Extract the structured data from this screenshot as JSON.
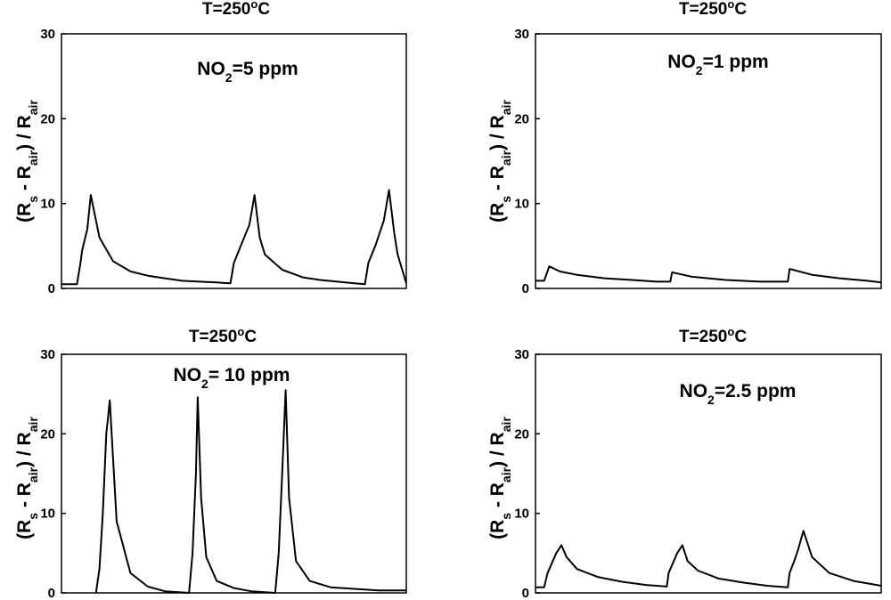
{
  "chart_data": [
    {
      "type": "line",
      "title": "T=250",
      "title_sup": "o",
      "title_unit": "C",
      "ylabel": {
        "open": "(R",
        "s": "s",
        "minus": " - R",
        "air1": "air",
        "close": ") / R",
        "air2": "air"
      },
      "ylim": [
        0,
        30
      ],
      "yticks": [
        0,
        10,
        20,
        30
      ],
      "annotation": {
        "pre": "NO",
        "sub": "2",
        "post": "=5 ppm"
      },
      "series": [
        {
          "name": "NO2 5 ppm response",
          "x": [
            0.0,
            0.02,
            0.045,
            0.055,
            0.06,
            0.075,
            0.085,
            0.11,
            0.15,
            0.2,
            0.25,
            0.3,
            0.35,
            0.4,
            0.45,
            0.49,
            0.49,
            0.5,
            0.52,
            0.545,
            0.56,
            0.575,
            0.59,
            0.64,
            0.7,
            0.75,
            0.8,
            0.85,
            0.88,
            0.88,
            0.89,
            0.91,
            0.935,
            0.95,
            0.965,
            0.975,
            1.0
          ],
          "y": [
            0.5,
            0.5,
            0.5,
            3.0,
            4.5,
            7.0,
            11.0,
            6.0,
            3.2,
            2.0,
            1.5,
            1.2,
            0.9,
            0.8,
            0.7,
            0.6,
            0.6,
            3.0,
            5.0,
            7.5,
            11.0,
            6.0,
            4.0,
            2.2,
            1.3,
            1.0,
            0.8,
            0.6,
            0.5,
            0.5,
            3.0,
            5.0,
            8.0,
            11.6,
            6.5,
            4.0,
            0.6
          ]
        }
      ]
    },
    {
      "type": "line",
      "title": "T=250",
      "title_sup": "o",
      "title_unit": "C",
      "ylabel": {
        "open": "(R",
        "s": "s",
        "minus": " - R",
        "air1": "air",
        "close": ") / R",
        "air2": "air"
      },
      "ylim": [
        0,
        30
      ],
      "yticks": [
        0,
        10,
        20,
        30
      ],
      "annotation": {
        "pre": "NO",
        "sub": "2",
        "post": "=1 ppm"
      },
      "series": [
        {
          "name": "NO2 1 ppm response",
          "x": [
            0.0,
            0.025,
            0.04,
            0.07,
            0.12,
            0.2,
            0.28,
            0.35,
            0.39,
            0.395,
            0.45,
            0.55,
            0.65,
            0.73,
            0.735,
            0.8,
            0.88,
            0.96,
            1.0
          ],
          "y": [
            0.9,
            0.9,
            2.6,
            2.0,
            1.6,
            1.2,
            1.0,
            0.8,
            0.8,
            1.9,
            1.4,
            1.0,
            0.8,
            0.8,
            2.3,
            1.6,
            1.2,
            0.9,
            0.7
          ]
        }
      ]
    },
    {
      "type": "line",
      "title": "T=250",
      "title_sup": "o",
      "title_unit": "C",
      "ylabel": {
        "open": "(R",
        "s": "s",
        "minus": " - R",
        "air1": "air",
        "close": ") / R",
        "air2": "air"
      },
      "ylim": [
        0,
        30
      ],
      "yticks": [
        0,
        10,
        20,
        30
      ],
      "annotation": {
        "pre": "NO",
        "sub": "2",
        "post": "= 10 ppm"
      },
      "series": [
        {
          "name": "NO2 10 ppm response",
          "x": [
            0.1,
            0.11,
            0.12,
            0.13,
            0.14,
            0.16,
            0.2,
            0.25,
            0.3,
            0.37,
            0.38,
            0.39,
            0.395,
            0.405,
            0.42,
            0.45,
            0.5,
            0.55,
            0.62,
            0.63,
            0.64,
            0.65,
            0.66,
            0.68,
            0.72,
            0.78,
            0.85,
            0.92,
            1.0
          ],
          "y": [
            0.0,
            3.0,
            10.0,
            20.0,
            24.2,
            9.0,
            2.5,
            0.8,
            0.2,
            0.0,
            5.0,
            15.0,
            24.6,
            12.0,
            4.5,
            1.5,
            0.6,
            0.2,
            0.0,
            5.0,
            15.0,
            25.5,
            12.0,
            4.0,
            1.5,
            0.7,
            0.5,
            0.3,
            0.3
          ]
        }
      ]
    },
    {
      "type": "line",
      "title": "T=250",
      "title_sup": "o",
      "title_unit": "C",
      "ylabel": {
        "open": "(R",
        "s": "s",
        "minus": " - R",
        "air1": "air",
        "close": ") / R",
        "air2": "air"
      },
      "ylim": [
        0,
        30
      ],
      "yticks": [
        0,
        10,
        20,
        30
      ],
      "annotation": {
        "pre": "NO",
        "sub": "2",
        "post": "=2.5 ppm"
      },
      "series": [
        {
          "name": "NO2 2.5 ppm response",
          "x": [
            0.0,
            0.025,
            0.035,
            0.05,
            0.06,
            0.075,
            0.09,
            0.12,
            0.18,
            0.25,
            0.32,
            0.38,
            0.385,
            0.4,
            0.41,
            0.425,
            0.44,
            0.47,
            0.53,
            0.6,
            0.67,
            0.73,
            0.735,
            0.75,
            0.76,
            0.775,
            0.8,
            0.85,
            0.92,
            1.0
          ],
          "y": [
            0.7,
            0.7,
            2.5,
            4.0,
            5.0,
            6.0,
            4.5,
            3.0,
            2.0,
            1.4,
            1.0,
            0.8,
            2.5,
            4.0,
            5.0,
            6.0,
            4.0,
            2.8,
            1.8,
            1.3,
            0.9,
            0.7,
            2.5,
            4.2,
            5.5,
            7.8,
            4.5,
            2.5,
            1.5,
            0.9
          ]
        }
      ]
    }
  ]
}
